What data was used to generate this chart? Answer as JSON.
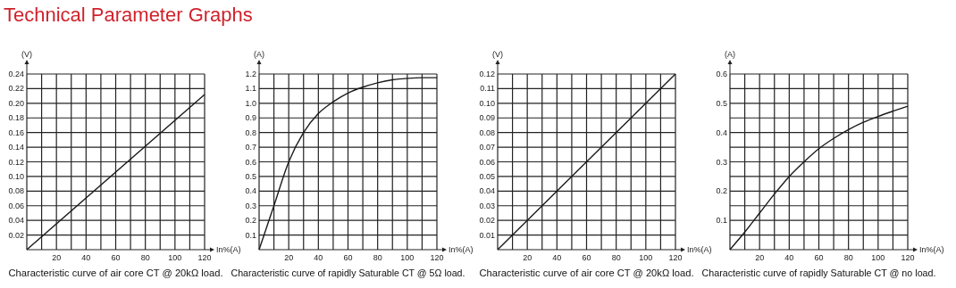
{
  "chart_data": [
    {
      "type": "line",
      "title": "Characteristic curve of air core CT @ 20kΩ load.",
      "annotations": [
        "Technical Parameter Graphs"
      ],
      "xlabel": "In%(A)",
      "ylabel": "(V)",
      "color": "#1a1a1a",
      "grid": true,
      "x": [
        0,
        120
      ],
      "values": [
        0,
        0.212
      ],
      "xlim": [
        0,
        120
      ],
      "xticks": [
        {
          "value": 10,
          "label": null
        },
        20,
        {
          "value": 30,
          "label": null
        },
        40,
        {
          "value": 50,
          "label": null
        },
        60,
        {
          "value": 70,
          "label": null
        },
        80,
        {
          "value": 90,
          "label": null
        },
        100,
        {
          "value": 110,
          "label": null
        },
        120
      ],
      "ylim": [
        0,
        0.24
      ],
      "yticks": [
        0.02,
        0.04,
        0.06,
        0.08,
        {
          "value": 0.1,
          "label": "0.10"
        },
        0.12,
        0.14,
        0.16,
        0.18,
        {
          "value": 0.2,
          "label": "0.20"
        },
        0.22,
        0.24
      ]
    },
    {
      "type": "line",
      "title": "Characteristic curve of rapidly Saturable CT @ 5Ω load.",
      "xlabel": "In%(A)",
      "ylabel": "(A)",
      "color": "#1a1a1a",
      "grid": true,
      "x": [
        0,
        10,
        20,
        30,
        40,
        50,
        60,
        70,
        80,
        90,
        100,
        110,
        120
      ],
      "values": [
        0,
        0.3,
        0.6,
        0.8,
        0.93,
        1.01,
        1.07,
        1.11,
        1.14,
        1.16,
        1.17,
        1.175,
        1.175
      ],
      "xlim": [
        0,
        120
      ],
      "xticks": [
        {
          "value": 10,
          "label": null
        },
        20,
        {
          "value": 30,
          "label": null
        },
        40,
        {
          "value": 50,
          "label": null
        },
        60,
        {
          "value": 70,
          "label": null
        },
        80,
        {
          "value": 90,
          "label": null
        },
        100,
        {
          "value": 110,
          "label": null
        },
        120
      ],
      "ylim": [
        0,
        1.2
      ],
      "yticks": [
        0.1,
        0.2,
        0.3,
        0.4,
        0.5,
        0.6,
        0.7,
        0.8,
        0.9,
        {
          "value": 1,
          "label": "1.0"
        },
        1.1,
        1.2
      ]
    },
    {
      "type": "line",
      "title": "Characteristic curve of air core CT @ 20kΩ load.",
      "xlabel": "In%(A)",
      "ylabel": "(V)",
      "color": "#1a1a1a",
      "grid": true,
      "x": [
        0,
        120
      ],
      "values": [
        0,
        0.12
      ],
      "xlim": [
        0,
        120
      ],
      "xticks": [
        {
          "value": 10,
          "label": null
        },
        20,
        {
          "value": 30,
          "label": null
        },
        40,
        {
          "value": 50,
          "label": null
        },
        60,
        {
          "value": 70,
          "label": null
        },
        80,
        {
          "value": 90,
          "label": null
        },
        100,
        {
          "value": 110,
          "label": null
        },
        120
      ],
      "ylim": [
        0,
        0.12
      ],
      "yticks": [
        0.01,
        0.02,
        0.03,
        0.04,
        0.05,
        0.06,
        0.07,
        0.08,
        0.09,
        {
          "value": 0.1,
          "label": "0.10"
        },
        0.11,
        0.12
      ]
    },
    {
      "type": "line",
      "title": "Characteristic curve of rapidly Saturable CT @ no load.",
      "xlabel": "In%(A)",
      "ylabel": "(A)",
      "color": "#1a1a1a",
      "grid": true,
      "x": [
        0,
        10,
        20,
        30,
        40,
        50,
        60,
        70,
        80,
        90,
        100,
        110,
        120
      ],
      "values": [
        0,
        0.06,
        0.125,
        0.19,
        0.25,
        0.3,
        0.345,
        0.38,
        0.41,
        0.435,
        0.455,
        0.473,
        0.49
      ],
      "xlim": [
        0,
        120
      ],
      "xticks": [
        {
          "value": 10,
          "label": null
        },
        20,
        {
          "value": 30,
          "label": null
        },
        40,
        {
          "value": 50,
          "label": null
        },
        60,
        {
          "value": 70,
          "label": null
        },
        80,
        {
          "value": 90,
          "label": null
        },
        100,
        {
          "value": 110,
          "label": null
        },
        120
      ],
      "ylim": [
        0,
        0.6
      ],
      "yticks": [
        {
          "value": 0.05,
          "label": null
        },
        0.1,
        {
          "value": 0.15,
          "label": null
        },
        0.2,
        {
          "value": 0.25,
          "label": null
        },
        0.3,
        {
          "value": 0.35,
          "label": null
        },
        0.4,
        {
          "value": 0.45,
          "label": null
        },
        0.5,
        {
          "value": 0.55,
          "label": null
        },
        0.6
      ]
    }
  ]
}
